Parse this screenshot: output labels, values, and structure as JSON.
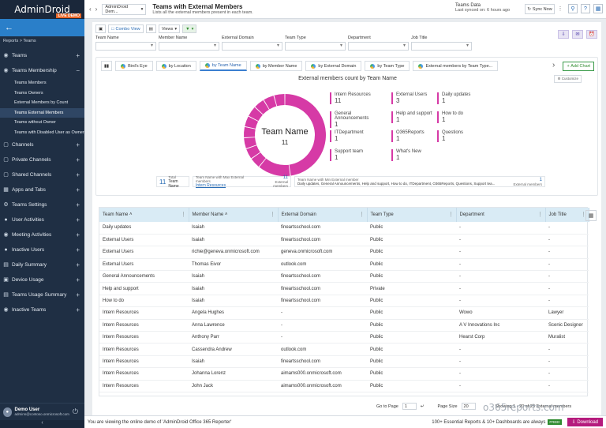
{
  "app": {
    "logo": "AdminDroid",
    "demo_badge": "LIVE DEMO",
    "breadcrumb": "Reports > Teams"
  },
  "sidebar": {
    "items": [
      {
        "label": "Teams",
        "icon": "teams-icon"
      },
      {
        "label": "Teams Membership",
        "icon": "teams-membership-icon",
        "expanded": true
      },
      {
        "label": "Channels",
        "icon": "channels-icon"
      },
      {
        "label": "Private Channels",
        "icon": "private-channels-icon"
      },
      {
        "label": "Shared Channels",
        "icon": "shared-channels-icon"
      },
      {
        "label": "Apps and Tabs",
        "icon": "apps-icon"
      },
      {
        "label": "Teams Settings",
        "icon": "settings-icon"
      },
      {
        "label": "User Activities",
        "icon": "user-activities-icon"
      },
      {
        "label": "Meeting Activities",
        "icon": "meeting-icon"
      },
      {
        "label": "Inactive Users",
        "icon": "inactive-users-icon"
      },
      {
        "label": "Daily Summary",
        "icon": "daily-summary-icon"
      },
      {
        "label": "Device Usage",
        "icon": "device-icon"
      },
      {
        "label": "Teams Usage Summary",
        "icon": "usage-icon"
      },
      {
        "label": "Inactive Teams",
        "icon": "inactive-teams-icon"
      }
    ],
    "subitems": [
      "Teams Members",
      "Teams Owners",
      "External Members by Count",
      "Teams External Members",
      "Teams without Owner",
      "Teams with Disabled User as Owner"
    ],
    "active_subitem": "Teams External Members",
    "user": {
      "name": "Demo User",
      "email": "adminn@contoso.onmicrosoft.com"
    }
  },
  "topbar": {
    "crumb_dropdown": "AdminDroid Dem...",
    "title": "Teams with External Members",
    "subtitle": "Lists all the external members present in each team.",
    "data_label": "Teams Data",
    "synced": "Last synced on: 6 hours ago",
    "sync_button": "Sync Now"
  },
  "toolbar": {
    "combo_view": "Combo View",
    "views": "Views"
  },
  "filters": [
    {
      "label": "Team Name"
    },
    {
      "label": "Member Name"
    },
    {
      "label": "External Domain"
    },
    {
      "label": "Team Type"
    },
    {
      "label": "Department"
    },
    {
      "label": "Job Title"
    }
  ],
  "chart_tabs": [
    "Bird's Eye",
    "by Location",
    "by Team Name",
    "by Member Name",
    "by External Domain",
    "by Team Type",
    "External members by Team Type..."
  ],
  "active_chart_tab": 2,
  "add_chart": "Add Chart",
  "customize": "Customize",
  "chart_data": {
    "type": "pie",
    "title": "External members count by Team Name",
    "center_label": "Team Name",
    "center_value": "11",
    "categories": [
      "Intern Resources",
      "External Users",
      "Daily updates",
      "General Announcements",
      "Help and support",
      "How to do",
      "ITDepartment",
      "O365Reports",
      "Questions",
      "Support team",
      "What's New"
    ],
    "values": [
      11,
      3,
      1,
      1,
      1,
      1,
      1,
      1,
      1,
      1,
      1
    ],
    "color": "#d63aa6"
  },
  "stats": {
    "total_value": "11",
    "total_label": "Total",
    "total_sub": "Team Name",
    "max_label": "Team Name with Max External members",
    "max_value_link": "Intern Resources",
    "max_count": "11",
    "max_unit": "External members",
    "min_label": "Team Name with Min External member",
    "min_list": "Daily updates, General Announcements, Help and support, How to do, ITDepartment, O365Reports, Questions, Support tea...",
    "min_count": "1",
    "min_unit": "External members"
  },
  "table": {
    "columns": [
      "Team Name",
      "Member Name",
      "External Domain",
      "Team Type",
      "Department",
      "Job Title"
    ],
    "rows": [
      [
        "Daily updates",
        "Isaiah",
        "fineartsschool.com",
        "Public",
        "-",
        "-"
      ],
      [
        "External Users",
        "Isaiah",
        "fineartsschool.com",
        "Public",
        "-",
        "-"
      ],
      [
        "External Users",
        "richie@geneva.onmicrosoft.com",
        "geneva.onmicrosoft.com",
        "Public",
        "-",
        "-"
      ],
      [
        "External Users",
        "Thomas Eivor",
        "outlook.com",
        "Public",
        "-",
        "-"
      ],
      [
        "General Announcements",
        "Isaiah",
        "fineartsschool.com",
        "Public",
        "-",
        "-"
      ],
      [
        "Help and support",
        "Isaiah",
        "fineartsschool.com",
        "Private",
        "-",
        "-"
      ],
      [
        "How to do",
        "Isaiah",
        "fineartsschool.com",
        "Public",
        "-",
        "-"
      ],
      [
        "Intern Resources",
        "Angela Hughes",
        "-",
        "Public",
        "Wowo",
        "Lawyer"
      ],
      [
        "Intern Resources",
        "Anna Lawrence",
        "-",
        "Public",
        "A V Innovations Inc",
        "Scenic Designer"
      ],
      [
        "Intern Resources",
        "Anthony Parr",
        "-",
        "Public",
        "Hearst Corp",
        "Muralist"
      ],
      [
        "Intern Resources",
        "Cassendra Andrew",
        "outlook.com",
        "Public",
        "-",
        "-"
      ],
      [
        "Intern Resources",
        "Isaiah",
        "fineartsschool.com",
        "Public",
        "-",
        "-"
      ],
      [
        "Intern Resources",
        "Johanna Lorenz",
        "aimams000.onmicrosoft.com",
        "Public",
        "-",
        "-"
      ],
      [
        "Intern Resources",
        "John Jack",
        "aimams000.onmicrosoft.com",
        "Public",
        "-",
        "-"
      ]
    ]
  },
  "pager": {
    "goto": "Go to Page",
    "page": "1",
    "page_size_label": "Page Size",
    "page_size": "20",
    "showing": "Showing 1 - 20 of 23 External members"
  },
  "footer": {
    "left": "You are viewing the online demo of 'AdminDroid Office 365 Reporter'",
    "right": "100+ Essential Reports & 10+ Dashboards are always",
    "free": "FREE!",
    "download": "Download"
  },
  "watermark": "o365reports.com"
}
